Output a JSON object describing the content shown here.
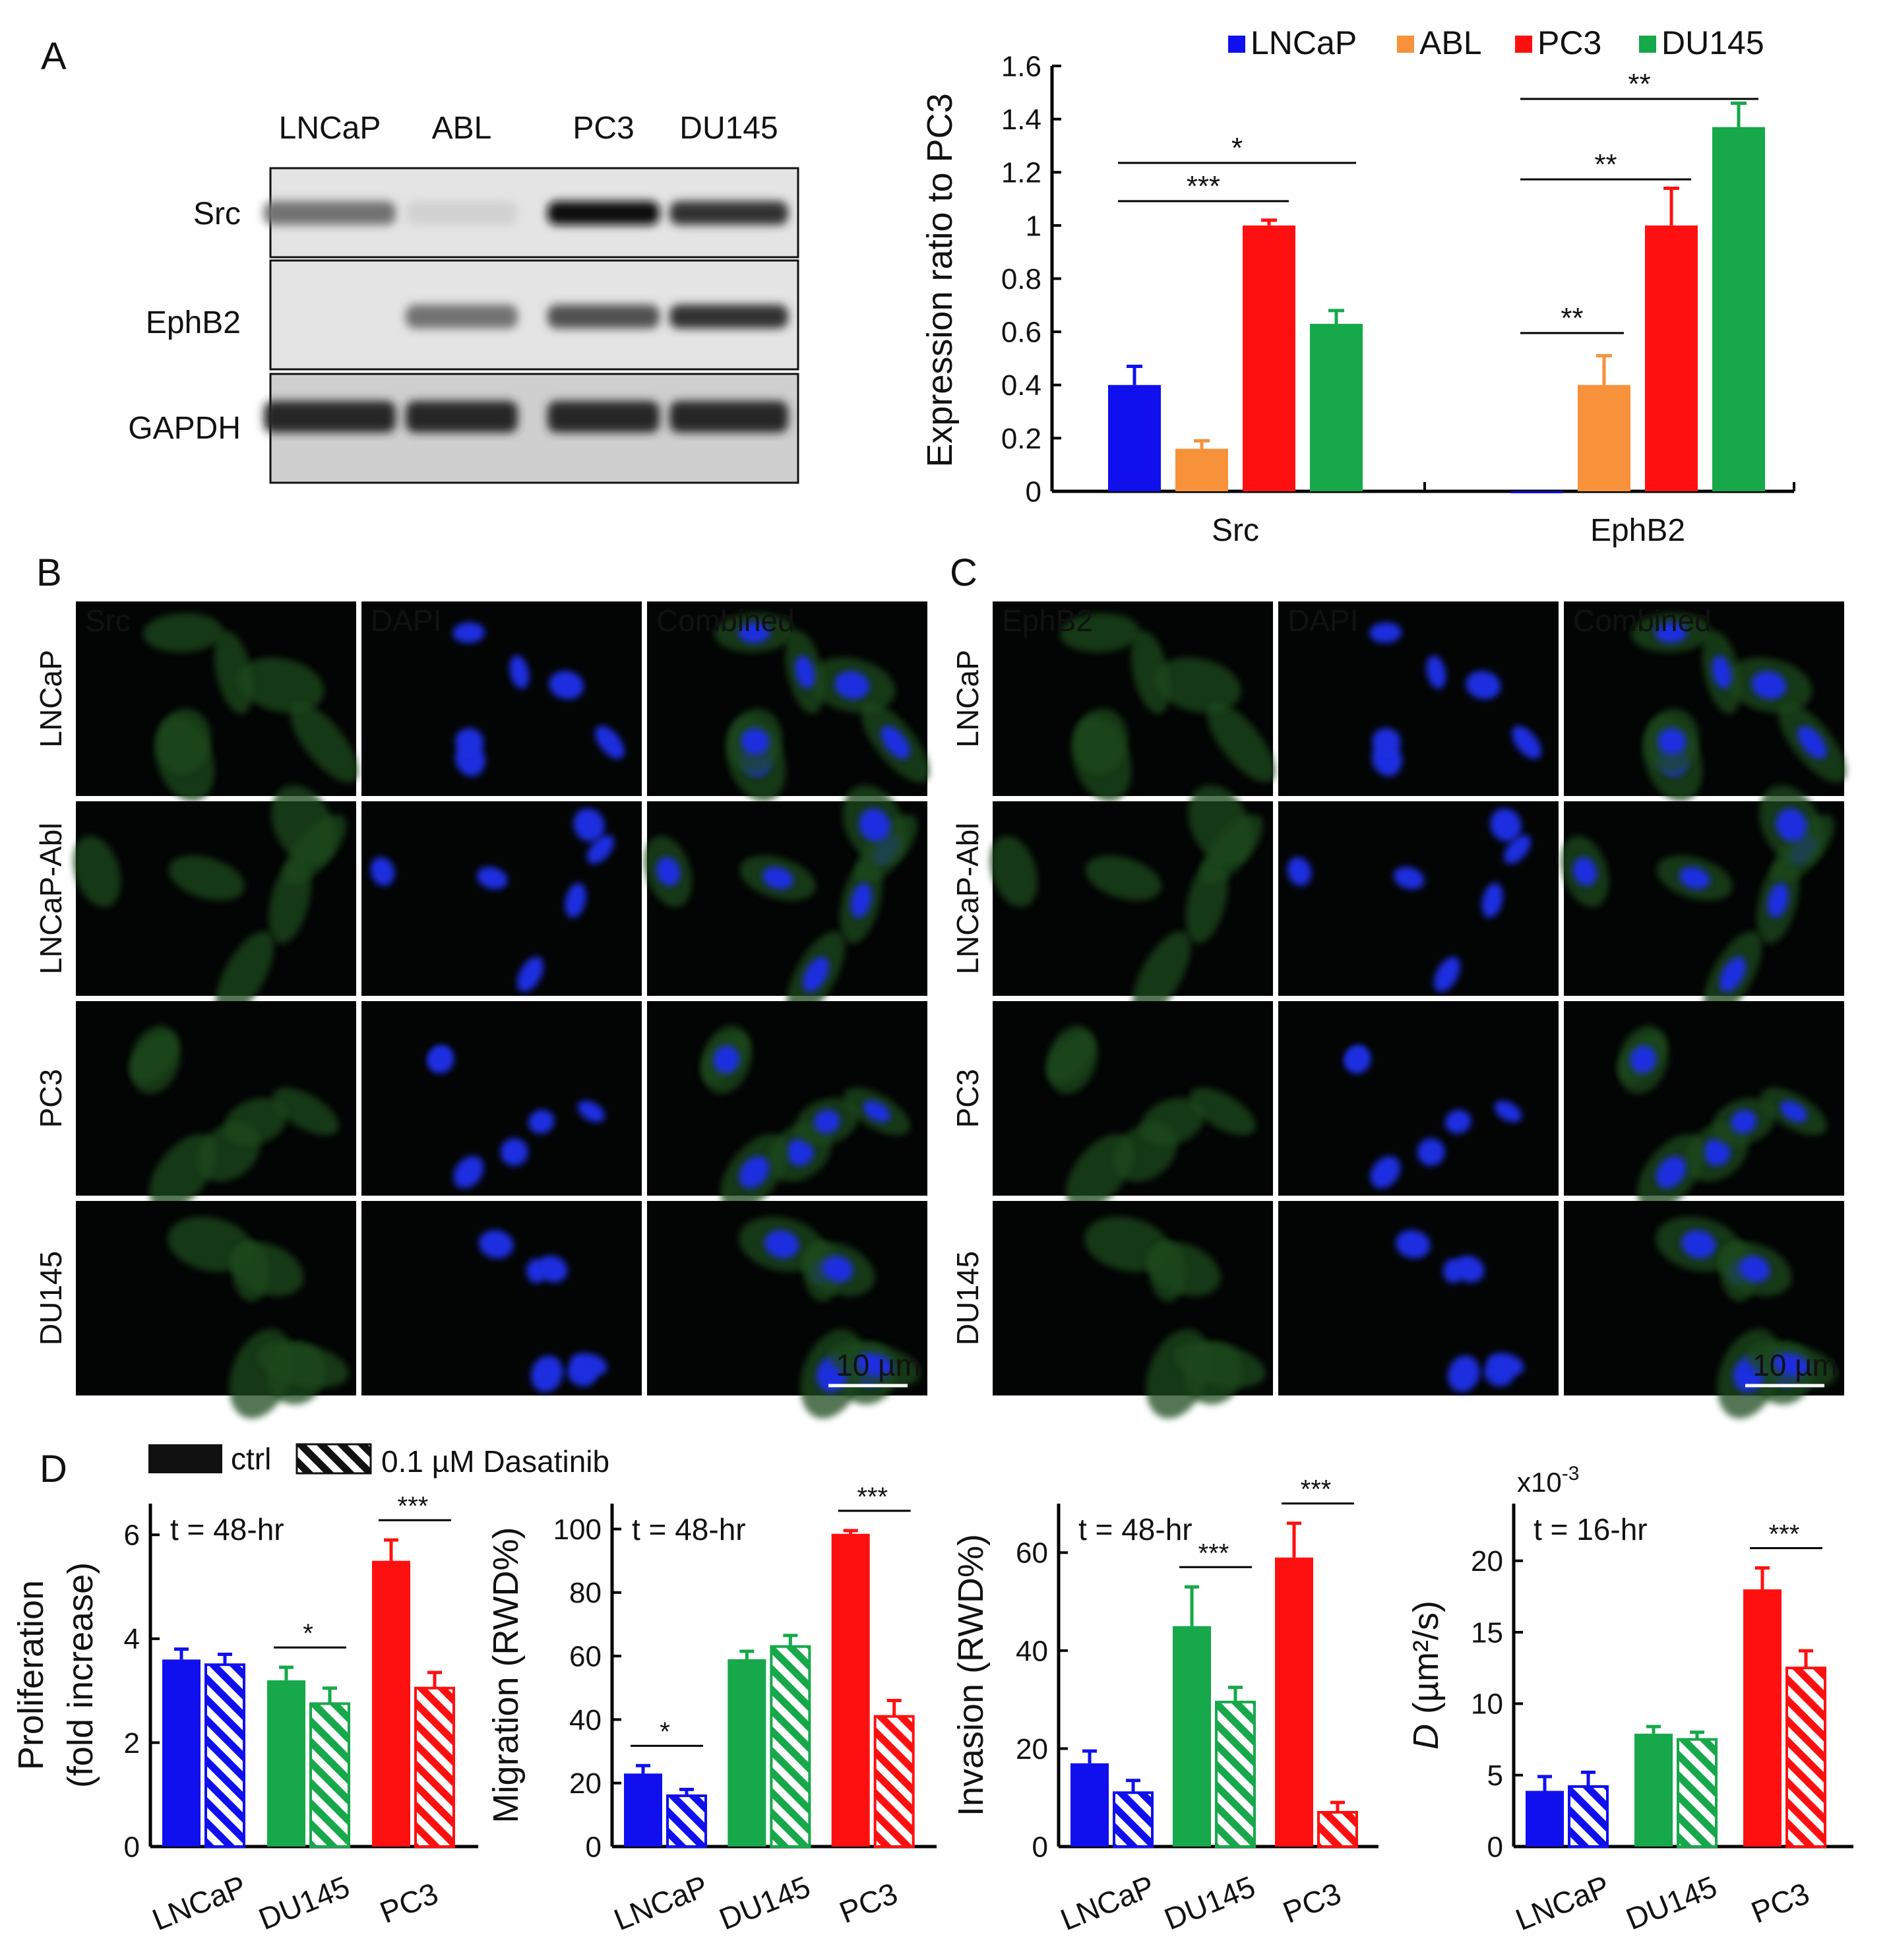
{
  "panel_labels": {
    "A": "A",
    "B": "B",
    "C": "C",
    "D": "D"
  },
  "western_blot": {
    "lanes": [
      "LNCaP",
      "ABL",
      "PC3",
      "DU145"
    ],
    "rows": [
      "Src",
      "EphB2",
      "GAPDH"
    ],
    "intensity": {
      "Src": [
        0.55,
        0.12,
        1.0,
        0.85
      ],
      "EphB2": [
        0.0,
        0.55,
        0.7,
        0.85
      ],
      "GAPDH": [
        0.9,
        0.9,
        0.9,
        0.9
      ]
    }
  },
  "micro_B": {
    "rows": [
      "LNCaP",
      "LNCaP-Abl",
      "PC3",
      "DU145"
    ],
    "cols": [
      {
        "label": "Src",
        "color": "#3aa62e"
      },
      {
        "label": "DAPI",
        "color": "#1f78d8"
      },
      {
        "label": "Combined",
        "color": "#e0a020"
      }
    ],
    "scalebar": "10 µm"
  },
  "micro_C": {
    "rows": [
      "LNCaP",
      "LNCaP-Abl",
      "PC3",
      "DU145"
    ],
    "cols": [
      {
        "label": "EphB2",
        "color": "#3aa62e"
      },
      {
        "label": "DAPI",
        "color": "#1f78d8"
      },
      {
        "label": "Combined",
        "color": "#e0a020"
      }
    ],
    "scalebar": "10 µm"
  },
  "panel_D_legend": {
    "ctrl": "ctrl",
    "treated": "0.1 µM  Dasatinib"
  },
  "chart_data": [
    {
      "type": "bar",
      "categories": [
        "Src",
        "EphB2"
      ],
      "series": [
        {
          "name": "LNCaP",
          "color": "#1010ee",
          "values": [
            0.4,
            0.0
          ],
          "err": [
            0.07,
            0.0
          ]
        },
        {
          "name": "ABL",
          "color": "#f7913a",
          "values": [
            0.16,
            0.4
          ],
          "err": [
            0.03,
            0.11
          ]
        },
        {
          "name": "PC3",
          "color": "#ff1010",
          "values": [
            1.0,
            1.0
          ],
          "err": [
            0.02,
            0.14
          ]
        },
        {
          "name": "DU145",
          "color": "#16a84a",
          "values": [
            0.63,
            1.37
          ],
          "err": [
            0.05,
            0.09
          ]
        }
      ],
      "ylabel": "Expression ratio to PC3",
      "ylim": [
        0,
        1.6
      ],
      "yticks": [
        "0",
        "0.2",
        "0.4",
        "0.6",
        "0.8",
        "1",
        "1.2",
        "1.4",
        "1.6"
      ],
      "significance": [
        {
          "category": "Src",
          "from": 0,
          "to": 2,
          "label": "***"
        },
        {
          "category": "Src",
          "from": 0,
          "to": 3,
          "label": "*"
        },
        {
          "category": "EphB2",
          "from": 0,
          "to": 1,
          "label": "**"
        },
        {
          "category": "EphB2",
          "from": 0,
          "to": 2,
          "label": "**"
        },
        {
          "category": "EphB2",
          "from": 0,
          "to": 3,
          "label": "**"
        }
      ]
    },
    {
      "type": "bar",
      "categories": [
        "LNCaP",
        "DU145",
        "PC3"
      ],
      "colors": [
        "#1010ee",
        "#16a84a",
        "#ff1010"
      ],
      "series": [
        {
          "name": "ctrl",
          "values": [
            3.6,
            3.2,
            5.5
          ],
          "err": [
            0.2,
            0.25,
            0.4
          ]
        },
        {
          "name": "0.1 µM Dasatinib",
          "values": [
            3.5,
            2.75,
            3.05
          ],
          "err": [
            0.2,
            0.3,
            0.3
          ]
        }
      ],
      "ylabel": "Proliferation",
      "ylabel2": "(fold increase)",
      "annotation": "t = 48-hr",
      "ylim": [
        0,
        6.6
      ],
      "yticks": [
        0,
        2,
        4,
        6
      ],
      "significance": [
        {
          "category": "DU145",
          "label": "*"
        },
        {
          "category": "PC3",
          "label": "***"
        }
      ]
    },
    {
      "type": "bar",
      "categories": [
        "LNCaP",
        "DU145",
        "PC3"
      ],
      "colors": [
        "#1010ee",
        "#16a84a",
        "#ff1010"
      ],
      "series": [
        {
          "name": "ctrl",
          "values": [
            23,
            59,
            98.5
          ],
          "err": [
            2.5,
            2.5,
            1
          ]
        },
        {
          "name": "0.1 µM Dasatinib",
          "values": [
            16,
            63,
            41
          ],
          "err": [
            2,
            3.5,
            5
          ]
        }
      ],
      "ylabel": "Migration (RWD%)",
      "annotation": "t = 48-hr",
      "ylim": [
        0,
        108
      ],
      "yticks": [
        0,
        20,
        40,
        60,
        80,
        100
      ],
      "significance": [
        {
          "category": "LNCaP",
          "label": "*"
        },
        {
          "category": "PC3",
          "label": "***"
        }
      ]
    },
    {
      "type": "bar",
      "categories": [
        "LNCaP",
        "DU145",
        "PC3"
      ],
      "colors": [
        "#1010ee",
        "#16a84a",
        "#ff1010"
      ],
      "series": [
        {
          "name": "ctrl",
          "values": [
            17,
            45,
            59
          ],
          "err": [
            2.5,
            8,
            7
          ]
        },
        {
          "name": "0.1 µM Dasatinib",
          "values": [
            11,
            29.5,
            7
          ],
          "err": [
            2.5,
            3,
            2
          ]
        }
      ],
      "ylabel": "Invasion (RWD%)",
      "annotation": "t = 48-hr",
      "ylim": [
        0,
        70
      ],
      "yticks": [
        0,
        20,
        40,
        60
      ],
      "significance": [
        {
          "category": "DU145",
          "label": "***"
        },
        {
          "category": "PC3",
          "label": "***"
        }
      ]
    },
    {
      "type": "bar",
      "categories": [
        "LNCaP",
        "DU145",
        "PC3"
      ],
      "colors": [
        "#1010ee",
        "#16a84a",
        "#ff1010"
      ],
      "series": [
        {
          "name": "ctrl",
          "values": [
            3.9,
            7.9,
            18
          ],
          "err": [
            1,
            0.5,
            1.5
          ]
        },
        {
          "name": "0.1 µM Dasatinib",
          "values": [
            4.2,
            7.5,
            12.5
          ],
          "err": [
            1,
            0.5,
            1.2
          ]
        }
      ],
      "ylabel_italic": "D",
      "ylabel": " (µm²/s)",
      "scale_note": "x10",
      "scale_exp": "-3",
      "annotation": "t = 16-hr",
      "ylim": [
        0,
        24
      ],
      "yticks": [
        0,
        5,
        10,
        15,
        20
      ],
      "significance": [
        {
          "category": "PC3",
          "label": "***"
        }
      ]
    }
  ]
}
